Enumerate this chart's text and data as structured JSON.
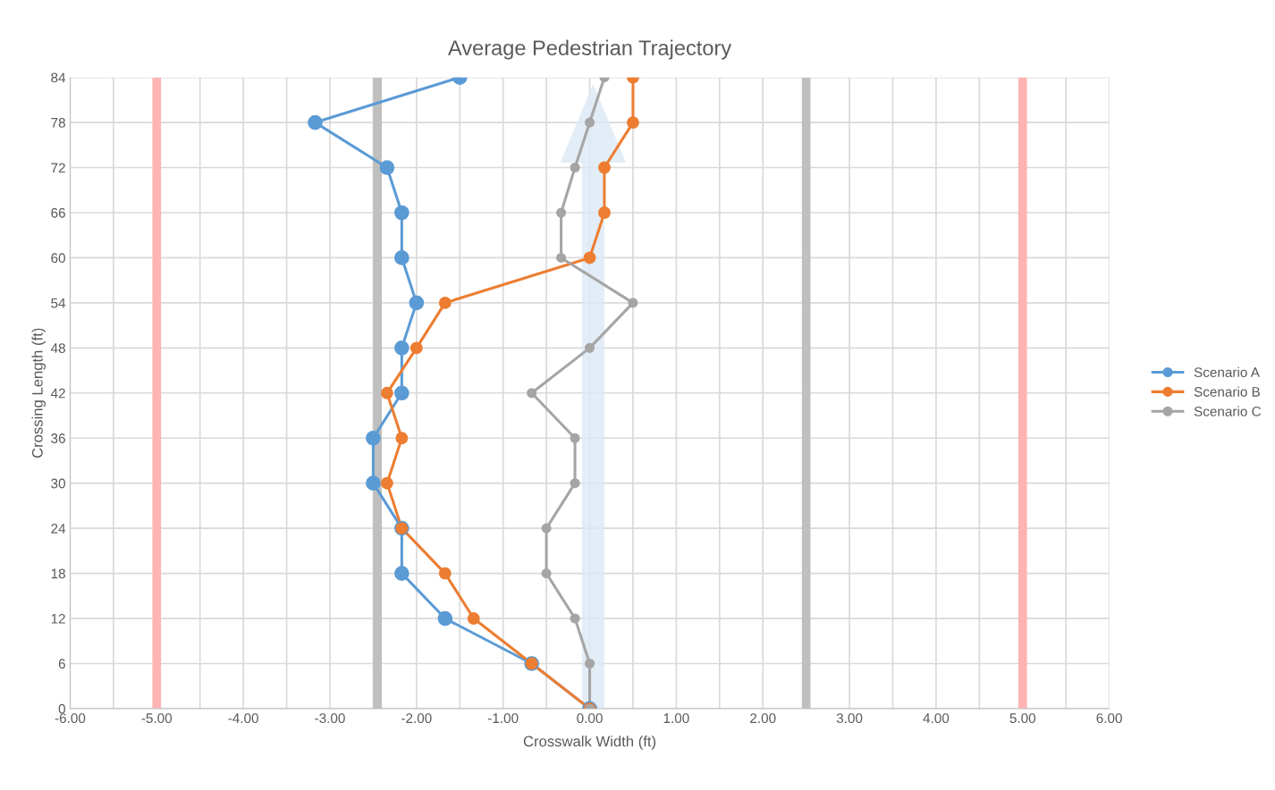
{
  "chart_data": {
    "type": "line",
    "title": "Average Pedestrian Trajectory",
    "xlabel": "Crosswalk Width (ft)",
    "ylabel": "Crossing Length (ft)",
    "xlim": [
      -6,
      6
    ],
    "xticks": [
      {
        "value": -6,
        "label": "-6.00"
      },
      {
        "value": -5.5,
        "label": null
      },
      {
        "value": -5,
        "label": "-5.00"
      },
      {
        "value": -4.5,
        "label": null
      },
      {
        "value": -4,
        "label": "-4.00"
      },
      {
        "value": -3.5,
        "label": null
      },
      {
        "value": -3,
        "label": "-3.00"
      },
      {
        "value": -2.5,
        "label": null
      },
      {
        "value": -2,
        "label": "-2.00"
      },
      {
        "value": -1.5,
        "label": null
      },
      {
        "value": -1,
        "label": "-1.00"
      },
      {
        "value": -0.5,
        "label": null
      },
      {
        "value": 0,
        "label": "0.00"
      },
      {
        "value": 0.5,
        "label": null
      },
      {
        "value": 1,
        "label": "1.00"
      },
      {
        "value": 1.5,
        "label": null
      },
      {
        "value": 2,
        "label": "2.00"
      },
      {
        "value": 2.5,
        "label": null
      },
      {
        "value": 3,
        "label": "3.00"
      },
      {
        "value": 3.5,
        "label": null
      },
      {
        "value": 4,
        "label": "4.00"
      },
      {
        "value": 4.5,
        "label": null
      },
      {
        "value": 5,
        "label": "5.00"
      },
      {
        "value": 5.5,
        "label": null
      },
      {
        "value": 6,
        "label": "6.00"
      }
    ],
    "ylim": [
      0,
      84
    ],
    "yticks": [
      0,
      6,
      12,
      18,
      24,
      30,
      36,
      42,
      48,
      54,
      60,
      66,
      72,
      78,
      84
    ],
    "grid": true,
    "legend": "right",
    "marker": "circle",
    "line_style": "solid",
    "series": [
      {
        "name": "Scenario A",
        "color": "#5b9bd5",
        "x": [
          0,
          -0.67,
          -1.67,
          -2.17,
          -2.17,
          -2.5,
          -2.5,
          -2.17,
          -2.17,
          -2.0,
          -2.17,
          -2.17,
          -2.34,
          -3.17,
          -1.5
        ],
        "values": [
          0,
          6,
          12,
          18,
          24,
          30,
          36,
          42,
          48,
          54,
          60,
          66,
          72,
          78,
          84
        ]
      },
      {
        "name": "Scenario B",
        "color": "#ed7d31",
        "x": [
          0,
          -0.67,
          -1.34,
          -1.67,
          -2.17,
          -2.34,
          -2.17,
          -2.34,
          -2.0,
          -1.67,
          0,
          0.17,
          0.17,
          0.5,
          0.5
        ],
        "values": [
          0,
          6,
          12,
          18,
          24,
          30,
          36,
          42,
          48,
          54,
          60,
          66,
          72,
          78,
          84
        ]
      },
      {
        "name": "Scenario C",
        "color": "#a5a5a5",
        "x": [
          0,
          0,
          -0.17,
          -0.5,
          -0.5,
          -0.17,
          -0.17,
          -0.67,
          0,
          0.5,
          -0.33,
          -0.33,
          -0.17,
          0,
          0.17
        ],
        "values": [
          0,
          6,
          12,
          18,
          24,
          30,
          36,
          42,
          48,
          54,
          60,
          66,
          72,
          78,
          84
        ]
      }
    ],
    "bands": [
      {
        "axis": "x",
        "from": -5.05,
        "to": -4.95,
        "label": null,
        "color": "#ffb3b3"
      },
      {
        "axis": "x",
        "from": -2.5,
        "to": -2.4,
        "label": null,
        "color": "#bfbfbf"
      },
      {
        "axis": "x",
        "from": 2.45,
        "to": 2.55,
        "label": null,
        "color": "#bfbfbf"
      },
      {
        "axis": "x",
        "from": 4.95,
        "to": 5.05,
        "label": null,
        "color": "#ffb3b3"
      }
    ]
  }
}
